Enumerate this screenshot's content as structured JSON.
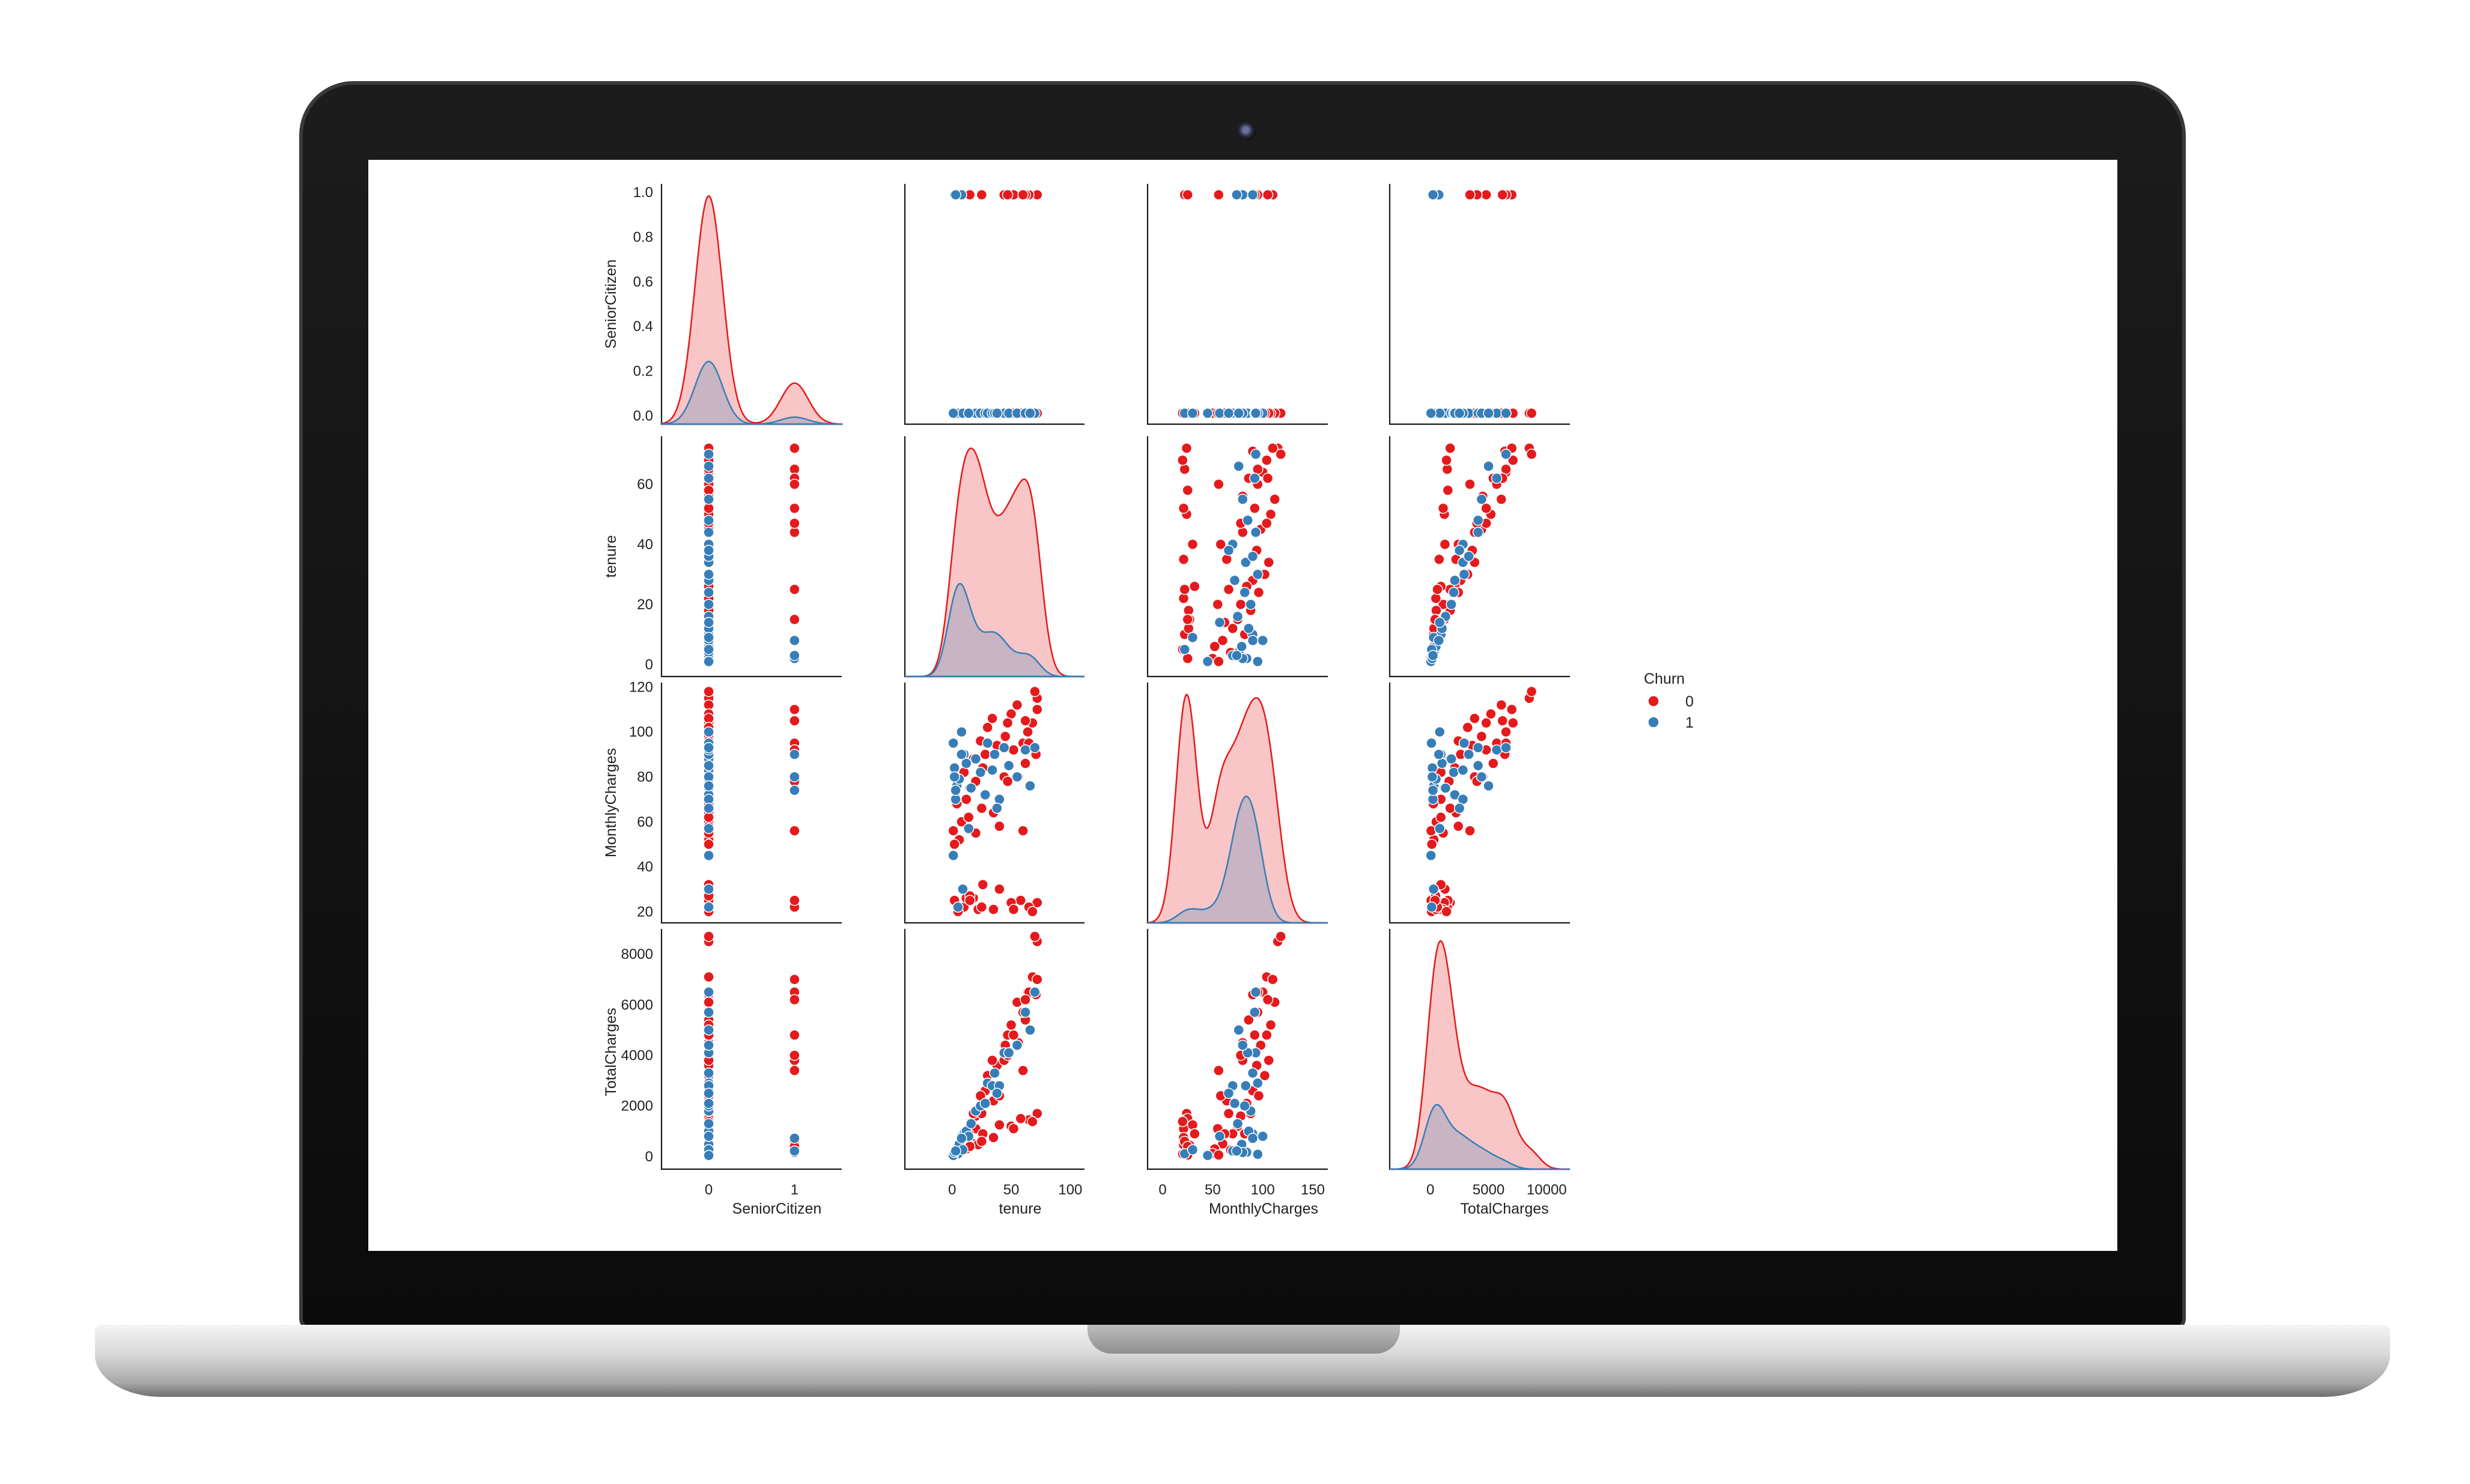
{
  "chart_data": {
    "type": "pairplot",
    "variables": [
      "SeniorCitizen",
      "tenure",
      "MonthlyCharges",
      "TotalCharges"
    ],
    "hue": {
      "title": "Churn",
      "levels": [
        {
          "label": "0",
          "color": "#e41a1c"
        },
        {
          "label": "1",
          "color": "#377eb8"
        }
      ]
    },
    "axes": {
      "SeniorCitizen": {
        "lim": [
          -0.55,
          1.55
        ],
        "ylim": [
          -0.05,
          1.05
        ],
        "ticks": [
          0,
          1
        ],
        "tick_labels": [
          "0",
          "1"
        ],
        "diag_yticks": [
          0.0,
          0.2,
          0.4,
          0.6,
          0.8,
          1.0
        ],
        "diag_ytick_labels": [
          "0.0",
          "0.2",
          "0.4",
          "0.6",
          "0.8",
          "1.0"
        ]
      },
      "tenure": {
        "lim": [
          -4,
          76
        ],
        "xlim": [
          -40,
          112
        ],
        "yticks": [
          0,
          20,
          40,
          60
        ],
        "ytick_labels": [
          "0",
          "20",
          "40",
          "60"
        ],
        "xticks": [
          0,
          50,
          100
        ],
        "xtick_labels": [
          "0",
          "50",
          "100"
        ]
      },
      "MonthlyCharges": {
        "lim": [
          15,
          122
        ],
        "xlim": [
          -15,
          165
        ],
        "yticks": [
          20,
          40,
          60,
          80,
          100,
          120
        ],
        "ytick_labels": [
          "20",
          "40",
          "60",
          "80",
          "100",
          "120"
        ],
        "xticks": [
          0,
          50,
          100,
          150
        ],
        "xtick_labels": [
          "0",
          "50",
          "100",
          "150"
        ]
      },
      "TotalCharges": {
        "lim": [
          -500,
          9000
        ],
        "xlim": [
          -3500,
          12000
        ],
        "yticks": [
          0,
          2000,
          4000,
          6000,
          8000
        ],
        "ytick_labels": [
          "0",
          "2000",
          "4000",
          "6000",
          "8000"
        ],
        "xticks": [
          0,
          5000,
          10000
        ],
        "xtick_labels": [
          "0",
          "5000",
          "10000"
        ]
      }
    },
    "records": [
      [
        0,
        72,
        115,
        8500,
        0
      ],
      [
        0,
        70,
        118,
        8700,
        0
      ],
      [
        0,
        68,
        104,
        7100,
        0
      ],
      [
        0,
        71,
        90,
        6400,
        0
      ],
      [
        0,
        64,
        100,
        6500,
        0
      ],
      [
        0,
        62,
        86,
        5400,
        0
      ],
      [
        0,
        60,
        95,
        5700,
        0
      ],
      [
        0,
        56,
        80,
        4500,
        0
      ],
      [
        0,
        55,
        112,
        6100,
        0
      ],
      [
        0,
        50,
        108,
        5200,
        0
      ],
      [
        0,
        45,
        98,
        4400,
        0
      ],
      [
        0,
        47,
        104,
        4800,
        0
      ],
      [
        0,
        38,
        94,
        3600,
        0
      ],
      [
        0,
        34,
        106,
        3800,
        0
      ],
      [
        0,
        30,
        102,
        3200,
        0
      ],
      [
        0,
        28,
        90,
        2600,
        0
      ],
      [
        0,
        26,
        84,
        2100,
        0
      ],
      [
        0,
        24,
        96,
        2400,
        0
      ],
      [
        0,
        20,
        78,
        1600,
        0
      ],
      [
        0,
        18,
        88,
        1700,
        0
      ],
      [
        0,
        15,
        75,
        1200,
        0
      ],
      [
        0,
        12,
        70,
        900,
        0
      ],
      [
        0,
        10,
        82,
        900,
        0
      ],
      [
        0,
        8,
        60,
        500,
        0
      ],
      [
        0,
        6,
        52,
        300,
        0
      ],
      [
        0,
        4,
        68,
        250,
        0
      ],
      [
        0,
        3,
        74,
        200,
        0
      ],
      [
        0,
        2,
        50,
        120,
        0
      ],
      [
        0,
        1,
        56,
        60,
        0
      ],
      [
        0,
        35,
        64,
        2200,
        0
      ],
      [
        0,
        40,
        58,
        2400,
        0
      ],
      [
        0,
        20,
        55,
        1100,
        0
      ],
      [
        0,
        25,
        66,
        1700,
        0
      ],
      [
        0,
        14,
        62,
        900,
        0
      ],
      [
        0,
        72,
        24,
        1700,
        0
      ],
      [
        0,
        65,
        22,
        1450,
        0
      ],
      [
        0,
        58,
        25,
        1500,
        0
      ],
      [
        0,
        50,
        24,
        1200,
        0
      ],
      [
        0,
        52,
        21,
        1100,
        0
      ],
      [
        0,
        40,
        30,
        1250,
        0
      ],
      [
        0,
        35,
        21,
        750,
        0
      ],
      [
        0,
        26,
        32,
        900,
        0
      ],
      [
        0,
        18,
        26,
        500,
        0
      ],
      [
        0,
        10,
        22,
        260,
        0
      ],
      [
        0,
        12,
        26,
        300,
        0
      ],
      [
        0,
        5,
        20,
        100,
        0
      ],
      [
        0,
        2,
        25,
        60,
        0
      ],
      [
        0,
        15,
        27,
        450,
        0
      ],
      [
        0,
        22,
        21,
        470,
        0
      ],
      [
        0,
        68,
        20,
        1380,
        0
      ],
      [
        1,
        72,
        110,
        7000,
        0
      ],
      [
        1,
        65,
        95,
        6500,
        0
      ],
      [
        1,
        62,
        105,
        6200,
        0
      ],
      [
        1,
        52,
        92,
        4800,
        0
      ],
      [
        1,
        44,
        80,
        3800,
        0
      ],
      [
        1,
        47,
        78,
        4000,
        0
      ],
      [
        1,
        25,
        22,
        600,
        0
      ],
      [
        1,
        15,
        25,
        400,
        0
      ],
      [
        1,
        60,
        56,
        3400,
        0
      ],
      [
        0,
        1,
        95,
        90,
        1
      ],
      [
        0,
        2,
        84,
        170,
        1
      ],
      [
        0,
        3,
        70,
        220,
        1
      ],
      [
        0,
        4,
        76,
        300,
        1
      ],
      [
        0,
        6,
        79,
        480,
        1
      ],
      [
        0,
        8,
        100,
        800,
        1
      ],
      [
        0,
        10,
        90,
        900,
        1
      ],
      [
        0,
        12,
        86,
        1000,
        1
      ],
      [
        0,
        16,
        75,
        1300,
        1
      ],
      [
        0,
        20,
        88,
        1800,
        1
      ],
      [
        0,
        24,
        82,
        2000,
        1
      ],
      [
        0,
        28,
        72,
        2100,
        1
      ],
      [
        0,
        30,
        95,
        2900,
        1
      ],
      [
        0,
        34,
        83,
        2800,
        1
      ],
      [
        0,
        36,
        90,
        3300,
        1
      ],
      [
        0,
        40,
        70,
        2800,
        1
      ],
      [
        0,
        44,
        93,
        4100,
        1
      ],
      [
        0,
        48,
        85,
        4100,
        1
      ],
      [
        0,
        55,
        80,
        4400,
        1
      ],
      [
        0,
        62,
        92,
        5700,
        1
      ],
      [
        0,
        70,
        93,
        6500,
        1
      ],
      [
        0,
        66,
        76,
        5000,
        1
      ],
      [
        0,
        5,
        22,
        110,
        1
      ],
      [
        0,
        9,
        30,
        270,
        1
      ],
      [
        0,
        14,
        57,
        800,
        1
      ],
      [
        0,
        38,
        66,
        2500,
        1
      ],
      [
        0,
        1,
        45,
        45,
        1
      ],
      [
        1,
        2,
        80,
        160,
        1
      ],
      [
        1,
        8,
        90,
        720,
        1
      ],
      [
        1,
        3,
        74,
        220,
        1
      ]
    ]
  },
  "labels": {
    "x": [
      "SeniorCitizen",
      "tenure",
      "MonthlyCharges",
      "TotalCharges"
    ],
    "y": [
      "SeniorCitizen",
      "tenure",
      "MonthlyCharges",
      "TotalCharges"
    ]
  },
  "colors": {
    "class0": "#e41a1c",
    "class1": "#377eb8",
    "frame": "#1b1b1b"
  }
}
